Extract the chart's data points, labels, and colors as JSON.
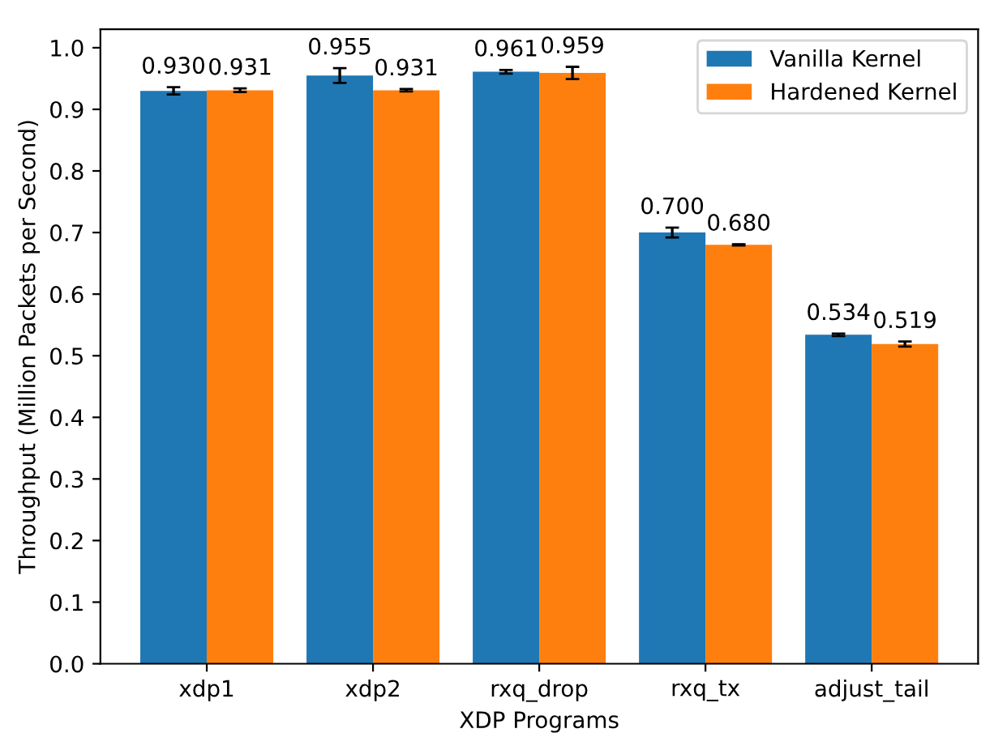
{
  "chart_data": {
    "type": "bar",
    "xlabel": "XDP Programs",
    "ylabel": "Throughput (Million Packets per Second)",
    "categories": [
      "xdp1",
      "xdp2",
      "rxq_drop",
      "rxq_tx",
      "adjust_tail"
    ],
    "series": [
      {
        "name": "Vanilla Kernel",
        "color": "#1f77b4",
        "values": [
          0.93,
          0.955,
          0.961,
          0.7,
          0.534
        ],
        "errors": [
          0.006,
          0.012,
          0.003,
          0.008,
          0.002
        ],
        "value_labels": [
          "0.930",
          "0.955",
          "0.961",
          "0.700",
          "0.534"
        ]
      },
      {
        "name": "Hardened Kernel",
        "color": "#ff7f0e",
        "values": [
          0.931,
          0.931,
          0.959,
          0.68,
          0.519
        ],
        "errors": [
          0.003,
          0.002,
          0.01,
          0.001,
          0.004
        ],
        "value_labels": [
          "0.931",
          "0.931",
          "0.959",
          "0.680",
          "0.519"
        ]
      }
    ],
    "ylim": [
      0,
      1.03
    ],
    "yticks": [
      {
        "value": 0,
        "label": "0.0"
      },
      0.1,
      0.2,
      0.3,
      0.4,
      0.5,
      0.6,
      0.7,
      0.8,
      0.9,
      {
        "value": 1,
        "label": "1.0"
      }
    ],
    "legend": "top right"
  }
}
